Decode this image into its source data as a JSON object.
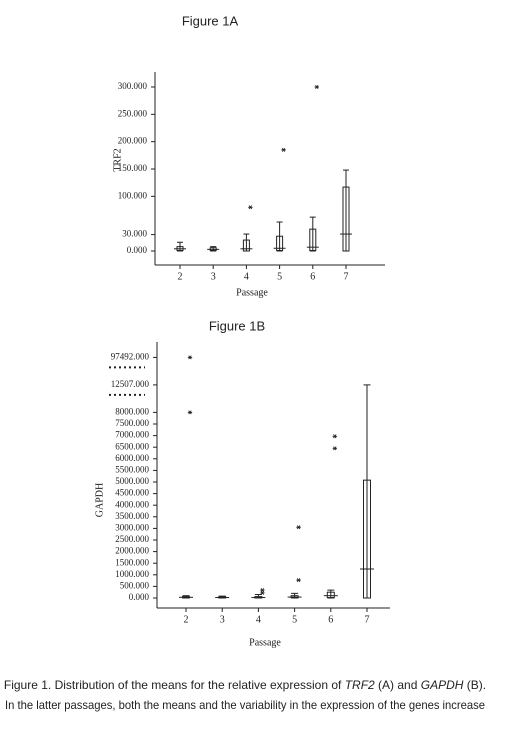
{
  "chart_data": [
    {
      "type": "box",
      "title": "Figure 1A",
      "ylabel": "TRF2",
      "xlabel": "Passage",
      "categories": [
        "2",
        "3",
        "4",
        "5",
        "6",
        "7"
      ],
      "boxes": [
        {
          "min": 0,
          "q1": 1,
          "median": 4,
          "q3": 8,
          "max": 16,
          "outliers": []
        },
        {
          "min": 0,
          "q1": 1,
          "median": 3,
          "q3": 6,
          "max": 8,
          "outliers": []
        },
        {
          "min": 0,
          "q1": 0,
          "median": 4,
          "q3": 20,
          "max": 31,
          "outliers": [
            80
          ]
        },
        {
          "min": 0,
          "q1": 1,
          "median": 5,
          "q3": 27,
          "max": 53,
          "outliers": [
            185
          ]
        },
        {
          "min": 0,
          "q1": 1,
          "median": 7,
          "q3": 40,
          "max": 62,
          "outliers": [
            300
          ]
        },
        {
          "min": 0,
          "q1": 0,
          "median": 31,
          "q3": 117,
          "max": 148,
          "outliers": []
        }
      ],
      "ylim": [
        0,
        300
      ],
      "yticks": [
        {
          "value": 0,
          "label": "0.000"
        },
        {
          "value": 30,
          "label": "30.000"
        },
        {
          "value": 100,
          "label": "100.000"
        },
        {
          "value": 150,
          "label": "150.000"
        },
        {
          "value": 200,
          "label": "200.000"
        },
        {
          "value": 250,
          "label": "250.000"
        },
        {
          "value": 300,
          "label": "300.000"
        }
      ],
      "axis_break": false,
      "color": "#000000"
    },
    {
      "type": "box",
      "title": "Figure 1B",
      "ylabel": "GAPDH",
      "xlabel": "Passage",
      "categories": [
        "2",
        "3",
        "4",
        "5",
        "6",
        "7"
      ],
      "boxes": [
        {
          "min": 0,
          "q1": 10,
          "median": 30,
          "q3": 60,
          "max": 100,
          "outliers": [
            8000,
            97492
          ]
        },
        {
          "min": 0,
          "q1": 5,
          "median": 20,
          "q3": 50,
          "max": 80,
          "outliers": []
        },
        {
          "min": 0,
          "q1": 5,
          "median": 20,
          "q3": 60,
          "max": 150,
          "outliers": [
            220,
            340
          ]
        },
        {
          "min": 0,
          "q1": 10,
          "median": 40,
          "q3": 100,
          "max": 200,
          "outliers": [
            770,
            3050
          ]
        },
        {
          "min": 0,
          "q1": 20,
          "median": 100,
          "q3": 250,
          "max": 340,
          "outliers": [
            6450,
            6970
          ]
        },
        {
          "min": 0,
          "q1": 0,
          "median": 1250,
          "q3": 5080,
          "max": 12507,
          "outliers": []
        }
      ],
      "ylim": [
        0,
        97492
      ],
      "yticks": [
        {
          "value": 0,
          "label": "0.000"
        },
        {
          "value": 500,
          "label": "500.000"
        },
        {
          "value": 1000,
          "label": "1000.000"
        },
        {
          "value": 1500,
          "label": "1500.000"
        },
        {
          "value": 2000,
          "label": "2000.000"
        },
        {
          "value": 2500,
          "label": "2500.000"
        },
        {
          "value": 3000,
          "label": "3000.000"
        },
        {
          "value": 3500,
          "label": "3500.000"
        },
        {
          "value": 4000,
          "label": "4000.000"
        },
        {
          "value": 4500,
          "label": "4500.000"
        },
        {
          "value": 5000,
          "label": "5000.000"
        },
        {
          "value": 5500,
          "label": "5500.000"
        },
        {
          "value": 6000,
          "label": "6000.000"
        },
        {
          "value": 6500,
          "label": "6500.000"
        },
        {
          "value": 7000,
          "label": "7000.000"
        },
        {
          "value": 7500,
          "label": "7500.000"
        },
        {
          "value": 8000,
          "label": "8000.000"
        },
        {
          "value": 12507,
          "label": "12507.000"
        },
        {
          "value": 97492,
          "label": "97492.000"
        }
      ],
      "axis_break": true,
      "color": "#000000"
    }
  ],
  "caption": {
    "line1_a": "Figure 1. Distribution of the means for the relative expression of ",
    "line1_b": "TRF2",
    "line1_c": " (A) and ",
    "line1_d": "GAPDH",
    "line1_e": " (B).",
    "line2": "In the latter passages, both the means and the variability in the expression of the genes increase"
  }
}
